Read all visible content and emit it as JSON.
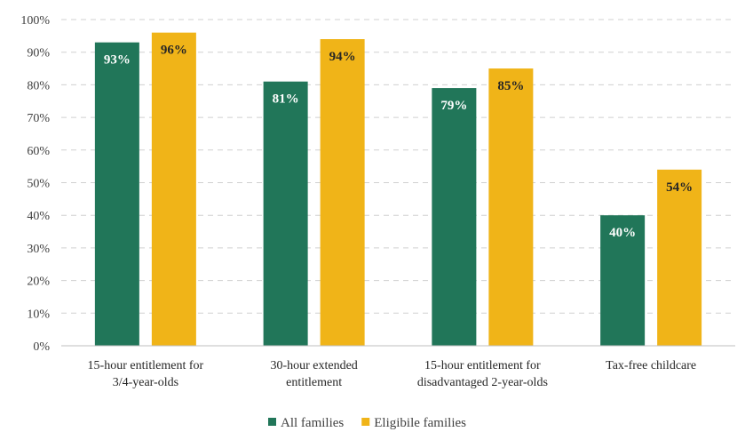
{
  "chart_data": {
    "type": "bar",
    "categories": [
      [
        "15-hour entitlement for",
        "3/4-year-olds"
      ],
      [
        "30-hour extended",
        "entitlement"
      ],
      [
        "15-hour entitlement for",
        "disadvantaged 2-year-olds"
      ],
      [
        "Tax-free childcare"
      ]
    ],
    "series": [
      {
        "name": "All families",
        "values": [
          93,
          81,
          79,
          40
        ],
        "labels": [
          "93%",
          "81%",
          "79%",
          "40%"
        ],
        "color": "#217659",
        "label_color": "#ffffff"
      },
      {
        "name": "Eligibile families",
        "values": [
          96,
          94,
          85,
          54
        ],
        "labels": [
          "96%",
          "94%",
          "85%",
          "54%"
        ],
        "color": "#F0B418",
        "label_color": "#262626"
      }
    ],
    "yticks": [
      "0%",
      "10%",
      "20%",
      "30%",
      "40%",
      "50%",
      "60%",
      "70%",
      "80%",
      "90%",
      "100%"
    ],
    "ylim": [
      0,
      100
    ],
    "grid": true,
    "legend_position": "bottom"
  }
}
